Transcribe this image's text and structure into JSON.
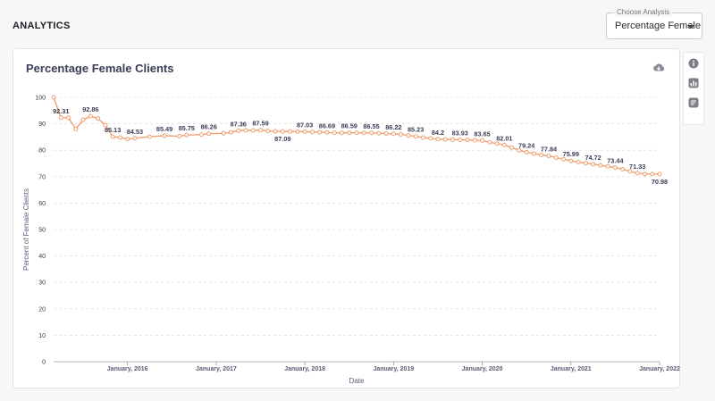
{
  "header": {
    "title": "ANALYTICS"
  },
  "analysis_select": {
    "label": "Choose Analysis",
    "value": "Percentage Female"
  },
  "card": {
    "icons": [
      "download-icon",
      "info-icon",
      "chart-icon",
      "notes-icon"
    ]
  },
  "colors": {
    "line": "#f0a070",
    "grid": "#d8d8dc"
  },
  "chart_data": {
    "type": "line",
    "title": "Percentage Female Clients",
    "xlabel": "Date",
    "ylabel": "Percent of Female Clients",
    "ylim": [
      0,
      100
    ],
    "yticks": [
      0,
      10,
      20,
      30,
      40,
      50,
      60,
      70,
      80,
      90,
      100
    ],
    "xlim": [
      "2015-03",
      "2022-01"
    ],
    "xticks": [
      {
        "date": "2016-01",
        "label": "January, 2016"
      },
      {
        "date": "2017-01",
        "label": "January, 2017"
      },
      {
        "date": "2018-01",
        "label": "January, 2018"
      },
      {
        "date": "2019-01",
        "label": "January, 2019"
      },
      {
        "date": "2020-01",
        "label": "January, 2020"
      },
      {
        "date": "2021-01",
        "label": "January, 2021"
      },
      {
        "date": "2022-01",
        "label": "January, 2022"
      }
    ],
    "grid": true,
    "series": [
      {
        "points": [
          {
            "x": "2015-03",
            "y": 100
          },
          {
            "x": "2015-04",
            "y": 92.31,
            "label": "92.31"
          },
          {
            "x": "2015-05",
            "y": 92.3
          },
          {
            "x": "2015-06",
            "y": 88
          },
          {
            "x": "2015-07",
            "y": 91.5
          },
          {
            "x": "2015-08",
            "y": 92.86,
            "label": "92.86"
          },
          {
            "x": "2015-09",
            "y": 92
          },
          {
            "x": "2015-10",
            "y": 89.5
          },
          {
            "x": "2015-11",
            "y": 85.13,
            "label": "85.13"
          },
          {
            "x": "2015-12",
            "y": 84.8
          },
          {
            "x": "2016-01",
            "y": 84.2
          },
          {
            "x": "2016-02",
            "y": 84.53,
            "label": "84.53"
          },
          {
            "x": "2016-04",
            "y": 85.1
          },
          {
            "x": "2016-06",
            "y": 85.49,
            "label": "85.49"
          },
          {
            "x": "2016-08",
            "y": 85.3
          },
          {
            "x": "2016-09",
            "y": 85.75,
            "label": "85.75"
          },
          {
            "x": "2016-11",
            "y": 85.9
          },
          {
            "x": "2016-12",
            "y": 86.26,
            "label": "86.26"
          },
          {
            "x": "2017-02",
            "y": 86.4
          },
          {
            "x": "2017-03",
            "y": 86.8
          },
          {
            "x": "2017-04",
            "y": 87.36,
            "label": "87.36"
          },
          {
            "x": "2017-05",
            "y": 87.5
          },
          {
            "x": "2017-06",
            "y": 87.45
          },
          {
            "x": "2017-07",
            "y": 87.59,
            "label": "87.59"
          },
          {
            "x": "2017-08",
            "y": 87.3
          },
          {
            "x": "2017-09",
            "y": 87.1
          },
          {
            "x": "2017-10",
            "y": 87.09,
            "label": "87.09"
          },
          {
            "x": "2017-11",
            "y": 87.1
          },
          {
            "x": "2017-12",
            "y": 87.05
          },
          {
            "x": "2018-01",
            "y": 87.03,
            "label": "87.03"
          },
          {
            "x": "2018-02",
            "y": 86.9
          },
          {
            "x": "2018-03",
            "y": 86.8
          },
          {
            "x": "2018-04",
            "y": 86.69,
            "label": "86.69"
          },
          {
            "x": "2018-05",
            "y": 86.6
          },
          {
            "x": "2018-06",
            "y": 86.55
          },
          {
            "x": "2018-07",
            "y": 86.59,
            "label": "86.59"
          },
          {
            "x": "2018-08",
            "y": 86.6
          },
          {
            "x": "2018-09",
            "y": 86.55
          },
          {
            "x": "2018-10",
            "y": 86.55,
            "label": "86.55"
          },
          {
            "x": "2018-11",
            "y": 86.4
          },
          {
            "x": "2018-12",
            "y": 86.3
          },
          {
            "x": "2019-01",
            "y": 86.22,
            "label": "86.22"
          },
          {
            "x": "2019-02",
            "y": 86
          },
          {
            "x": "2019-03",
            "y": 85.6
          },
          {
            "x": "2019-04",
            "y": 85.23,
            "label": "85.23"
          },
          {
            "x": "2019-05",
            "y": 84.8
          },
          {
            "x": "2019-06",
            "y": 84.5
          },
          {
            "x": "2019-07",
            "y": 84.2,
            "label": "84.2"
          },
          {
            "x": "2019-08",
            "y": 84.1
          },
          {
            "x": "2019-09",
            "y": 84
          },
          {
            "x": "2019-10",
            "y": 83.93,
            "label": "83.93"
          },
          {
            "x": "2019-11",
            "y": 83.9
          },
          {
            "x": "2019-12",
            "y": 83.8
          },
          {
            "x": "2020-01",
            "y": 83.65,
            "label": "83.65"
          },
          {
            "x": "2020-02",
            "y": 83
          },
          {
            "x": "2020-03",
            "y": 82.5
          },
          {
            "x": "2020-04",
            "y": 82.01,
            "label": "82.01"
          },
          {
            "x": "2020-05",
            "y": 81
          },
          {
            "x": "2020-06",
            "y": 80
          },
          {
            "x": "2020-07",
            "y": 79.24,
            "label": "79.24"
          },
          {
            "x": "2020-08",
            "y": 78.7
          },
          {
            "x": "2020-09",
            "y": 78.2
          },
          {
            "x": "2020-10",
            "y": 77.84,
            "label": "77.84"
          },
          {
            "x": "2020-11",
            "y": 77.2
          },
          {
            "x": "2020-12",
            "y": 76.6
          },
          {
            "x": "2021-01",
            "y": 75.99,
            "label": "75.99"
          },
          {
            "x": "2021-02",
            "y": 75.5
          },
          {
            "x": "2021-03",
            "y": 75.1
          },
          {
            "x": "2021-04",
            "y": 74.72,
            "label": "74.72"
          },
          {
            "x": "2021-05",
            "y": 74.3
          },
          {
            "x": "2021-06",
            "y": 73.9
          },
          {
            "x": "2021-07",
            "y": 73.44,
            "label": "73.44"
          },
          {
            "x": "2021-08",
            "y": 72.8
          },
          {
            "x": "2021-09",
            "y": 72
          },
          {
            "x": "2021-10",
            "y": 71.33,
            "label": "71.33"
          },
          {
            "x": "2021-11",
            "y": 71
          },
          {
            "x": "2021-12",
            "y": 71
          },
          {
            "x": "2022-01",
            "y": 70.98,
            "label": "70.98"
          }
        ]
      }
    ]
  }
}
